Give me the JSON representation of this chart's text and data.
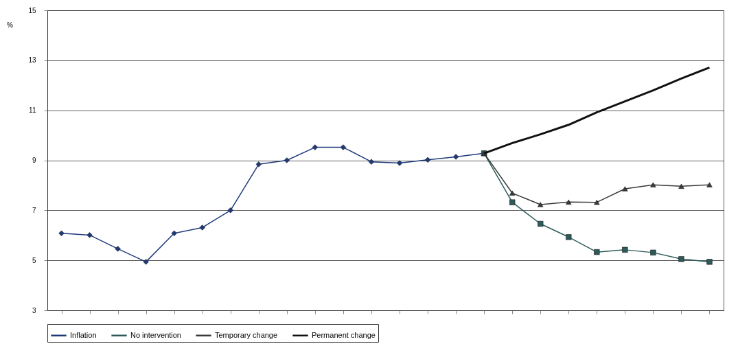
{
  "chart_data": {
    "type": "line",
    "ylabel": "%",
    "categories": [
      null,
      null,
      null,
      null,
      null,
      null,
      null,
      null,
      null,
      null,
      null,
      null,
      null,
      null,
      null,
      null,
      null,
      null,
      null,
      null,
      null,
      null,
      null,
      null
    ],
    "ylim": [
      3,
      15
    ],
    "yticks": [
      3,
      5,
      7,
      9,
      11,
      13,
      15
    ],
    "grid": "y",
    "legend": "bottom",
    "tick_labels": "y",
    "series": [
      {
        "name": "Inflation",
        "color": "#1f3a7a",
        "marker": "diamond",
        "values": [
          6.08,
          6.01,
          5.46,
          4.94,
          6.08,
          6.31,
          7.0,
          8.84,
          9.0,
          9.52,
          9.52,
          8.94,
          8.89,
          9.02,
          9.14,
          9.28,
          null,
          null,
          null,
          null,
          null,
          null,
          null,
          null
        ]
      },
      {
        "name": "No intervention",
        "color": "#2e5a5a",
        "marker": "square",
        "values": [
          null,
          null,
          null,
          null,
          null,
          null,
          null,
          null,
          null,
          null,
          null,
          null,
          null,
          null,
          null,
          9.28,
          7.32,
          6.46,
          5.93,
          5.33,
          5.42,
          5.31,
          5.05,
          4.94
        ]
      },
      {
        "name": "Temporary change",
        "color": "#3a3a3a",
        "marker": "triangle",
        "values": [
          null,
          null,
          null,
          null,
          null,
          null,
          null,
          null,
          null,
          null,
          null,
          null,
          null,
          null,
          null,
          9.28,
          7.69,
          7.23,
          7.33,
          7.32,
          7.86,
          8.02,
          7.96,
          8.02
        ]
      },
      {
        "name": "Permanent change",
        "color": "#111111",
        "marker": "none",
        "values": [
          null,
          null,
          null,
          null,
          null,
          null,
          null,
          null,
          null,
          null,
          null,
          null,
          null,
          null,
          null,
          9.28,
          9.69,
          10.04,
          10.42,
          10.92,
          11.36,
          11.8,
          12.27,
          12.71
        ]
      }
    ]
  }
}
